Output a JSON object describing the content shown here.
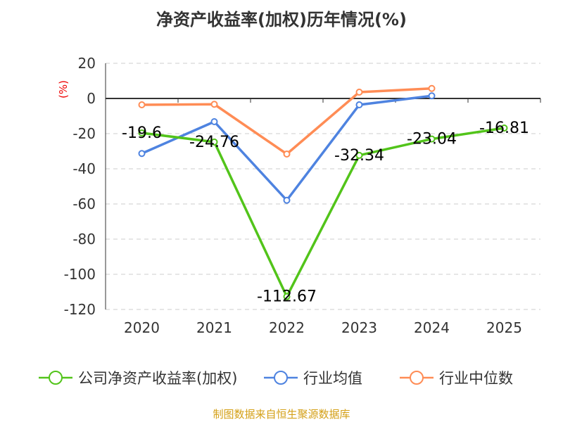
{
  "chart_data": {
    "type": "line",
    "title": "净资产收益率(加权)历年情况(%)",
    "ylabel": "(%)",
    "categories": [
      "2020",
      "2021",
      "2022",
      "2023",
      "2024",
      "2025"
    ],
    "ylim": [
      -120,
      20
    ],
    "yticks": [
      20,
      0,
      -20,
      -40,
      -60,
      -80,
      -100,
      -120
    ],
    "grid": true,
    "legend_position": "bottom",
    "series": [
      {
        "name": "公司净资产收益率(加权)",
        "color": "#52c41a",
        "values": [
          -19.6,
          -24.76,
          -112.67,
          -32.34,
          -23.04,
          -16.81
        ],
        "labels": [
          "-19.6",
          "-24.76",
          "-112.67",
          "-32.34",
          "-23.04",
          "-16.81"
        ]
      },
      {
        "name": "行业均值",
        "color": "#4e83e0",
        "values": [
          -31.3,
          -13.2,
          -57.9,
          -3.6,
          1.5,
          null
        ]
      },
      {
        "name": "行业中位数",
        "color": "#ff8c55",
        "values": [
          -3.6,
          -3.3,
          -31.6,
          3.6,
          5.7,
          null
        ]
      }
    ]
  },
  "source": "制图数据来自恒生聚源数据库"
}
